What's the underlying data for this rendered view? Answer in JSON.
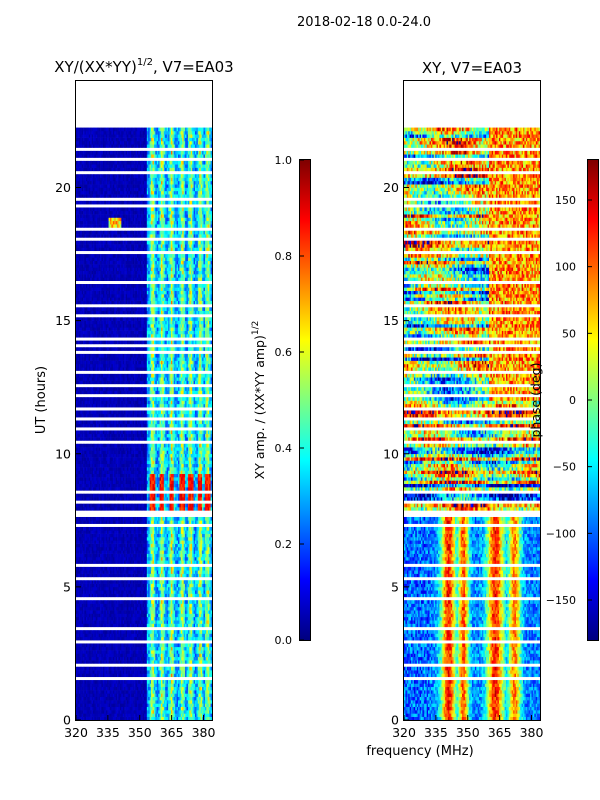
{
  "suptitle": "2018-02-18 0.0-24.0",
  "xlabel": "frequency (MHz)",
  "colors": {
    "jet": [
      "#00007f",
      "#0000ff",
      "#007fff",
      "#00ffff",
      "#7fff7f",
      "#ffff00",
      "#ff7f00",
      "#ff0000",
      "#7f0000"
    ],
    "gap": "#ffffff",
    "frame": "#000000"
  },
  "chart_data": [
    {
      "type": "heatmap",
      "title_main": "XY/(XX*YY)",
      "title_exp": "1/2",
      "title_rest": ", V7=EA03",
      "ylabel": "UT (hours)",
      "xlim": [
        320,
        384
      ],
      "ylim": [
        0,
        24
      ],
      "xticks": [
        "320",
        "335",
        "350",
        "365",
        "380"
      ],
      "xtick_values": [
        320,
        335,
        350,
        365,
        380
      ],
      "yticks": [
        "0",
        "5",
        "10",
        "15",
        "20"
      ],
      "ytick_values": [
        0,
        5,
        10,
        15,
        20
      ],
      "colorbar": {
        "label_main": "XY amp. / (XX*YY amp)",
        "label_exp": "1/2",
        "range": [
          0.0,
          1.0
        ],
        "ticks": [
          "0.0",
          "0.2",
          "0.4",
          "0.6",
          "0.8",
          "1.0"
        ],
        "tick_values": [
          0.0,
          0.2,
          0.4,
          0.6,
          0.8,
          1.0
        ]
      },
      "gap_hours": [
        0.25,
        1.0,
        1.6,
        2.1,
        2.9,
        3.25,
        3.45,
        4.0,
        4.6,
        5.3,
        5.8,
        6.5,
        7.3,
        7.7,
        7.8,
        8.2,
        8.6,
        9.0,
        9.5,
        10.0,
        10.4,
        10.9,
        11.3,
        11.7,
        12.2,
        12.6,
        13.1,
        13.5,
        13.8,
        14.1,
        14.3,
        15.2,
        15.6,
        16.0,
        16.4,
        17.0,
        17.6,
        18.1,
        18.4,
        19.0,
        19.3,
        19.6,
        20.6,
        21.1,
        21.4
      ],
      "missing_hours": [
        22.2,
        24.0
      ],
      "notes": "low amplitude (~0.05) below 353 MHz; bright vertical channels near 355-383 MHz (0.3-0.6); amplitude burst ~0.8-0.9 near 8-9 UT; small bright spot near 340 MHz at 18.6 UT"
    },
    {
      "type": "heatmap",
      "title": "XY, V7=EA03",
      "xlim": [
        320,
        384
      ],
      "ylim": [
        0,
        24
      ],
      "xticks": [
        "320",
        "335",
        "350",
        "365",
        "380"
      ],
      "xtick_values": [
        320,
        335,
        350,
        365,
        380
      ],
      "yticks": [
        "0",
        "5",
        "10",
        "15",
        "20"
      ],
      "ytick_values": [
        0,
        5,
        10,
        15,
        20
      ],
      "colorbar": {
        "label": "phase (deg)",
        "range": [
          -180,
          180
        ],
        "ticks": [
          "−150",
          "−100",
          "−50",
          "0",
          "50",
          "100",
          "150"
        ],
        "tick_values": [
          -150,
          -100,
          -50,
          0,
          50,
          100,
          150
        ]
      },
      "gap_hours": [
        0.25,
        1.0,
        1.6,
        2.1,
        2.9,
        3.25,
        3.45,
        4.0,
        4.6,
        5.3,
        5.8,
        6.5,
        7.3,
        7.7,
        7.8,
        8.2,
        8.6,
        9.0,
        9.5,
        10.0,
        10.4,
        10.9,
        11.3,
        11.7,
        12.2,
        12.6,
        13.1,
        13.5,
        13.8,
        14.1,
        14.3,
        15.2,
        15.6,
        16.0,
        16.4,
        17.0,
        17.6,
        18.1,
        18.4,
        19.0,
        19.3,
        19.6,
        20.6,
        21.1,
        21.4
      ],
      "missing_hours": [
        22.2,
        24.0
      ],
      "notes": "noisy phase; red/yellow vertical stripes near 340-350 MHz and 360-375 MHz below 8 UT; mixed phases above"
    }
  ]
}
